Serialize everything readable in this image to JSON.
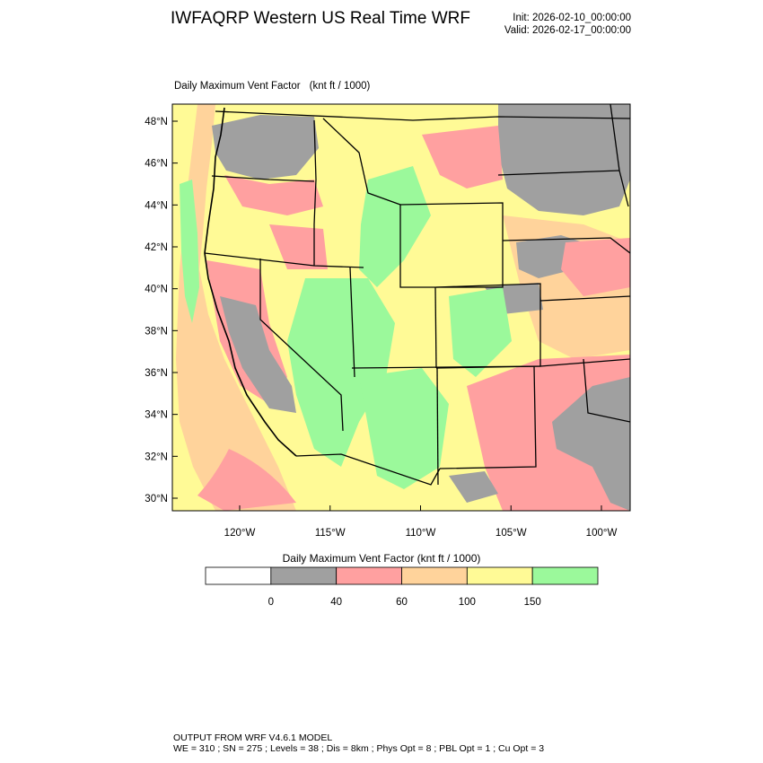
{
  "header": {
    "title": "IWFAQRP Western US Real Time WRF",
    "init": "Init: 2026-02-10_00:00:00",
    "valid": "Valid: 2026-02-17_00:00:00"
  },
  "plot": {
    "field": "Daily Maximum Vent Factor",
    "units": "(knt ft / 1000)",
    "lat_ticks": [
      "30°N",
      "32°N",
      "34°N",
      "36°N",
      "38°N",
      "40°N",
      "42°N",
      "44°N",
      "46°N",
      "48°N"
    ],
    "lon_ticks": [
      "120°W",
      "115°W",
      "110°W",
      "105°W",
      "100°W"
    ],
    "lat_values": [
      30,
      32,
      34,
      36,
      38,
      40,
      42,
      44,
      46,
      48
    ],
    "lon_values": [
      -120,
      -115,
      -110,
      -105,
      -100
    ]
  },
  "colorbar": {
    "title": "Daily Maximum Vent Factor  (knt ft / 1000)",
    "labels": [
      "0",
      "40",
      "60",
      "100",
      "150"
    ],
    "colors": [
      "#ffffff",
      "#a0a0a0",
      "#ffa0a0",
      "#ffd39b",
      "#fffa96",
      "#9bf99b"
    ]
  },
  "palette": {
    "gray": "#a0a0a0",
    "pink": "#ffa0a0",
    "orange": "#ffd39b",
    "yellow": "#fffa96",
    "green": "#9bf99b"
  },
  "footer": {
    "line1": "OUTPUT FROM WRF V4.6.1 MODEL",
    "line2": "WE = 310 ; SN = 275 ; Levels = 38 ; Dis = 8km ; Phys Opt = 8 ; PBL Opt = 1 ; Cu Opt = 3"
  }
}
